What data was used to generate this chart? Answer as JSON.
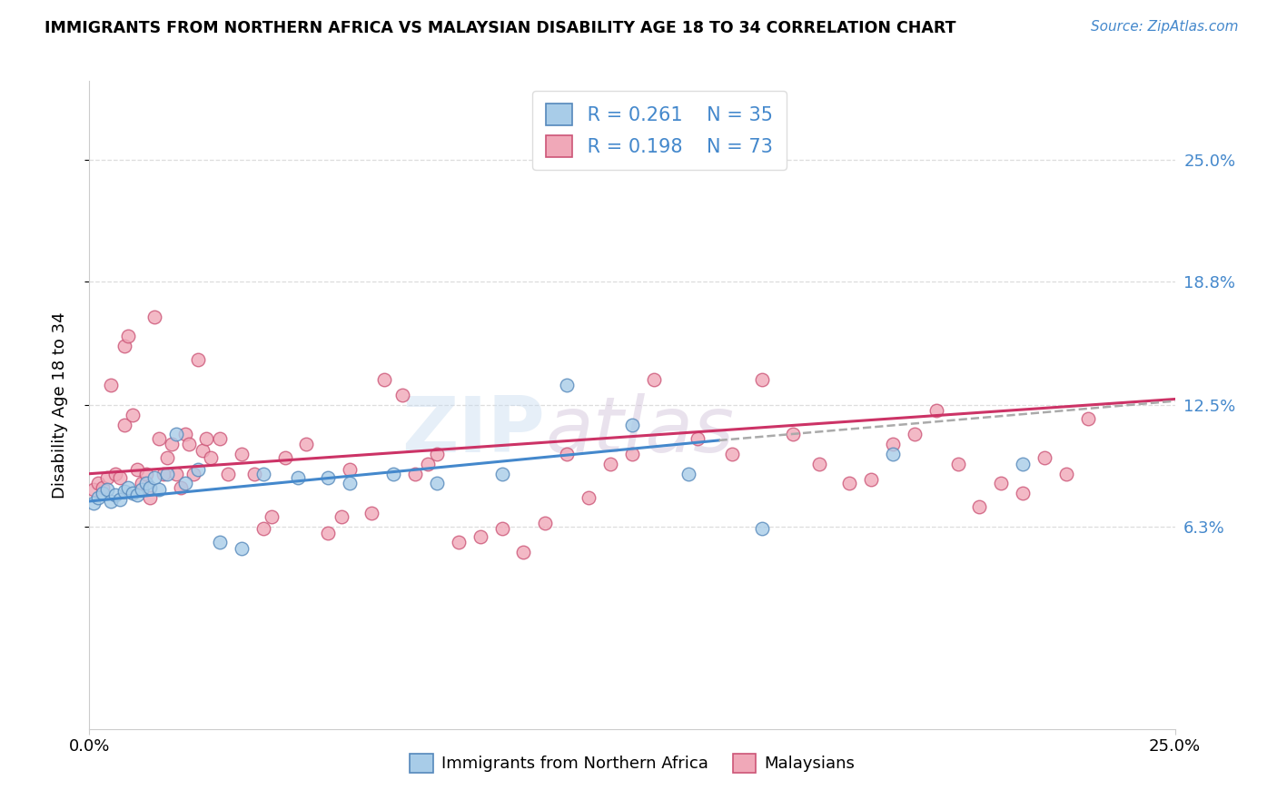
{
  "title": "IMMIGRANTS FROM NORTHERN AFRICA VS MALAYSIAN DISABILITY AGE 18 TO 34 CORRELATION CHART",
  "source": "Source: ZipAtlas.com",
  "ylabel": "Disability Age 18 to 34",
  "xlim": [
    0.0,
    0.25
  ],
  "ylim": [
    -0.04,
    0.29
  ],
  "ytick_values": [
    0.063,
    0.125,
    0.188,
    0.25
  ],
  "ytick_labels_right": [
    "6.3%",
    "12.5%",
    "18.8%",
    "25.0%"
  ],
  "xtick_values": [
    0.0,
    0.25
  ],
  "xtick_labels": [
    "0.0%",
    "25.0%"
  ],
  "legend_blue_r": "R = 0.261",
  "legend_blue_n": "N = 35",
  "legend_pink_r": "R = 0.198",
  "legend_pink_n": "N = 73",
  "legend_label_blue": "Immigrants from Northern Africa",
  "legend_label_pink": "Malaysians",
  "blue_face_color": "#A8CCE8",
  "blue_edge_color": "#5588BB",
  "pink_face_color": "#F0A8B8",
  "pink_edge_color": "#CC5577",
  "blue_line_color": "#4488CC",
  "pink_line_color": "#CC3366",
  "dashed_line_color": "#AAAAAA",
  "grid_color": "#DDDDDD",
  "watermark_zip": "ZIP",
  "watermark_atlas": "atlas",
  "blue_line_x0": 0.0,
  "blue_line_x1": 0.145,
  "blue_line_y0": 0.076,
  "blue_line_y1": 0.107,
  "pink_line_x0": 0.0,
  "pink_line_x1": 0.25,
  "pink_line_y0": 0.09,
  "pink_line_y1": 0.128,
  "dashed_line_x0": 0.145,
  "dashed_line_x1": 0.25,
  "dashed_line_y0": 0.107,
  "dashed_line_y1": 0.127,
  "blue_x": [
    0.001,
    0.002,
    0.003,
    0.004,
    0.005,
    0.006,
    0.007,
    0.008,
    0.009,
    0.01,
    0.011,
    0.012,
    0.013,
    0.014,
    0.015,
    0.016,
    0.018,
    0.02,
    0.022,
    0.025,
    0.03,
    0.035,
    0.04,
    0.048,
    0.055,
    0.06,
    0.07,
    0.08,
    0.095,
    0.11,
    0.125,
    0.138,
    0.155,
    0.185,
    0.215
  ],
  "blue_y": [
    0.075,
    0.078,
    0.08,
    0.082,
    0.076,
    0.079,
    0.077,
    0.081,
    0.083,
    0.08,
    0.079,
    0.082,
    0.085,
    0.083,
    0.088,
    0.082,
    0.09,
    0.11,
    0.085,
    0.092,
    0.055,
    0.052,
    0.09,
    0.088,
    0.088,
    0.085,
    0.09,
    0.085,
    0.09,
    0.135,
    0.115,
    0.09,
    0.062,
    0.1,
    0.095
  ],
  "pink_x": [
    0.001,
    0.002,
    0.003,
    0.004,
    0.005,
    0.006,
    0.007,
    0.008,
    0.008,
    0.009,
    0.01,
    0.011,
    0.012,
    0.013,
    0.014,
    0.015,
    0.016,
    0.017,
    0.018,
    0.019,
    0.02,
    0.021,
    0.022,
    0.023,
    0.024,
    0.025,
    0.026,
    0.027,
    0.028,
    0.03,
    0.032,
    0.035,
    0.038,
    0.04,
    0.042,
    0.045,
    0.05,
    0.055,
    0.058,
    0.06,
    0.065,
    0.068,
    0.072,
    0.075,
    0.078,
    0.08,
    0.085,
    0.09,
    0.095,
    0.1,
    0.105,
    0.11,
    0.115,
    0.12,
    0.125,
    0.13,
    0.14,
    0.148,
    0.155,
    0.162,
    0.168,
    0.175,
    0.18,
    0.185,
    0.19,
    0.195,
    0.2,
    0.205,
    0.21,
    0.215,
    0.22,
    0.225,
    0.23
  ],
  "pink_y": [
    0.082,
    0.085,
    0.083,
    0.088,
    0.135,
    0.09,
    0.088,
    0.155,
    0.115,
    0.16,
    0.12,
    0.092,
    0.085,
    0.09,
    0.078,
    0.17,
    0.108,
    0.09,
    0.098,
    0.105,
    0.09,
    0.083,
    0.11,
    0.105,
    0.09,
    0.148,
    0.102,
    0.108,
    0.098,
    0.108,
    0.09,
    0.1,
    0.09,
    0.062,
    0.068,
    0.098,
    0.105,
    0.06,
    0.068,
    0.092,
    0.07,
    0.138,
    0.13,
    0.09,
    0.095,
    0.1,
    0.055,
    0.058,
    0.062,
    0.05,
    0.065,
    0.1,
    0.078,
    0.095,
    0.1,
    0.138,
    0.108,
    0.1,
    0.138,
    0.11,
    0.095,
    0.085,
    0.087,
    0.105,
    0.11,
    0.122,
    0.095,
    0.073,
    0.085,
    0.08,
    0.098,
    0.09,
    0.118
  ]
}
